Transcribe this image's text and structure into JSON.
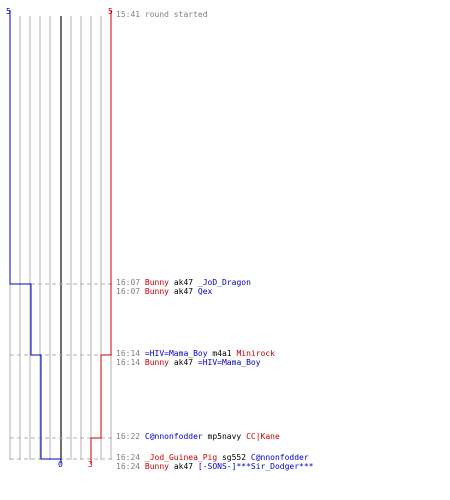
{
  "colors": {
    "blue_team": "#0000cc",
    "red_team": "#cc0000",
    "grid": "#b0b0b0",
    "center_line": "#404040",
    "dashed": "#b0b0b0",
    "time": "#808080",
    "weapon": "#000000"
  },
  "scores": {
    "blue_start": "5",
    "red_start": "5",
    "blue_end": "0",
    "red_end": "3"
  },
  "chart_data": {
    "type": "line",
    "series": [
      {
        "team": "blue",
        "x": [
          0,
          1,
          2,
          3,
          4,
          5,
          6,
          7
        ],
        "y": [
          5,
          5,
          4,
          4,
          3,
          3,
          2,
          0
        ]
      },
      {
        "team": "red",
        "x": [
          0,
          1,
          2,
          3,
          4,
          5,
          6,
          7
        ],
        "y": [
          5,
          5,
          5,
          5,
          5,
          5,
          4,
          3
        ]
      }
    ],
    "ylim": [
      0,
      5
    ],
    "grid": true
  },
  "log": [
    {
      "time": "15:41",
      "parts": [
        {
          "text": "round started",
          "color": "#808080"
        }
      ]
    },
    {
      "time": "16:07",
      "parts": [
        {
          "text": "Bunny",
          "color": "#cc0000"
        },
        {
          "text": " ak47 ",
          "color": "#000000"
        },
        {
          "text": "_JoD_Dragon",
          "color": "#0000cc"
        }
      ]
    },
    {
      "time": "16:07",
      "parts": [
        {
          "text": "Bunny",
          "color": "#cc0000"
        },
        {
          "text": " ak47 ",
          "color": "#000000"
        },
        {
          "text": "Qex",
          "color": "#0000cc"
        }
      ]
    },
    {
      "time": "16:14",
      "parts": [
        {
          "text": "=HIV=Mama_Boy",
          "color": "#0000cc"
        },
        {
          "text": " m4a1 ",
          "color": "#000000"
        },
        {
          "text": "Minirock",
          "color": "#cc0000"
        }
      ]
    },
    {
      "time": "16:14",
      "parts": [
        {
          "text": "Bunny",
          "color": "#cc0000"
        },
        {
          "text": " ak47 ",
          "color": "#000000"
        },
        {
          "text": "=HIV=Mama_Boy",
          "color": "#0000cc"
        }
      ]
    },
    {
      "time": "16:22",
      "parts": [
        {
          "text": "C@nnonfodder",
          "color": "#0000cc"
        },
        {
          "text": " mp5navy ",
          "color": "#000000"
        },
        {
          "text": "CC|Kane",
          "color": "#cc0000"
        }
      ]
    },
    {
      "time": "16:24",
      "parts": [
        {
          "text": "_Jod_Guinea_Pig",
          "color": "#cc0000"
        },
        {
          "text": " sg552 ",
          "color": "#000000"
        },
        {
          "text": "C@nnonfodder",
          "color": "#0000cc"
        }
      ]
    },
    {
      "time": "16:24",
      "parts": [
        {
          "text": "Bunny",
          "color": "#cc0000"
        },
        {
          "text": " ak47 ",
          "color": "#000000"
        },
        {
          "text": "[-SONS-]***Sir_Dodger***",
          "color": "#0000cc"
        }
      ]
    }
  ]
}
